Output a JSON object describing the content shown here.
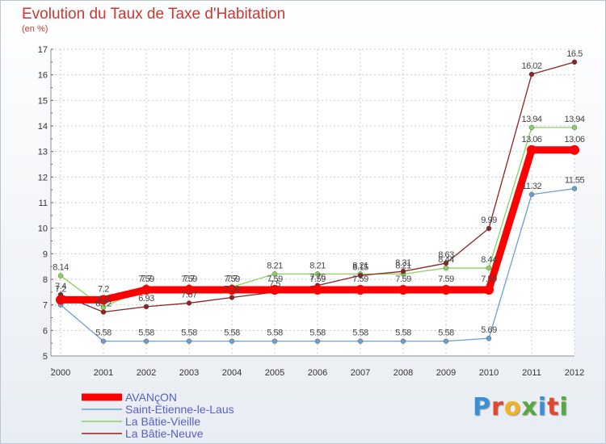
{
  "title": "Evolution du Taux de Taxe d'Habitation",
  "subtitle": "(en %)",
  "logo": "Proxiti",
  "chart_data": {
    "type": "line",
    "title": "Evolution du Taux de Taxe d'Habitation",
    "subtitle": "(en %)",
    "x": [
      "2000",
      "2001",
      "2002",
      "2003",
      "2004",
      "2005",
      "2006",
      "2007",
      "2008",
      "2009",
      "2010",
      "2011",
      "2012"
    ],
    "ylim": [
      5,
      17
    ],
    "yticks": [
      5,
      6,
      7,
      8,
      9,
      10,
      11,
      12,
      13,
      14,
      15,
      16,
      17
    ],
    "grid": true,
    "legend_position": "bottom-left",
    "series": [
      {
        "name": "AVANçON",
        "color": "#ff0000",
        "values": [
          7.2,
          7.2,
          7.59,
          7.59,
          7.59,
          7.59,
          7.59,
          7.59,
          7.59,
          7.59,
          7.59,
          13.06,
          13.06
        ],
        "labels": [
          "7.2",
          "7.2",
          "7.59",
          "7.59",
          "7.59",
          "7.59",
          "7.59",
          "7.59",
          "7.59",
          "7.59",
          "7.59",
          "13.06",
          "13.06"
        ]
      },
      {
        "name": "Saint-Étienne-le-Laus",
        "color": "#6b9fcf",
        "values": [
          7.0,
          5.58,
          5.58,
          5.58,
          5.58,
          5.58,
          5.58,
          5.58,
          5.58,
          5.58,
          5.69,
          11.32,
          11.55
        ],
        "labels": [
          "7",
          "5.58",
          "5.58",
          "5.58",
          "5.58",
          "5.58",
          "5.58",
          "5.58",
          "5.58",
          "5.58",
          "5.69",
          "11.32",
          "11.55"
        ]
      },
      {
        "name": "La Bâtie-Vieille",
        "color": "#8bd162",
        "values": [
          8.14,
          6.9,
          7.7,
          7.7,
          7.7,
          8.21,
          8.21,
          8.21,
          8.21,
          8.44,
          8.44,
          13.94,
          13.94
        ],
        "labels": [
          "8.14",
          "6.9",
          "7.7",
          "7.7",
          "7.7",
          "8.21",
          "8.21",
          "8.21",
          "8.21",
          "8.44",
          "8.44",
          "13.94",
          "13.94"
        ]
      },
      {
        "name": "La Bâtie-Neuve",
        "color": "#8b2525",
        "values": [
          7.4,
          6.72,
          6.93,
          7.07,
          7.29,
          7.5,
          7.76,
          8.15,
          8.31,
          8.63,
          9.99,
          16.02,
          16.5
        ],
        "labels": [
          "7.4",
          "6.72",
          "6.93",
          "7.07",
          "7.29",
          "7.5",
          "7.76",
          "8.15",
          "8.31",
          "8.63",
          "9.99",
          "16.02",
          "16.5"
        ]
      }
    ]
  }
}
